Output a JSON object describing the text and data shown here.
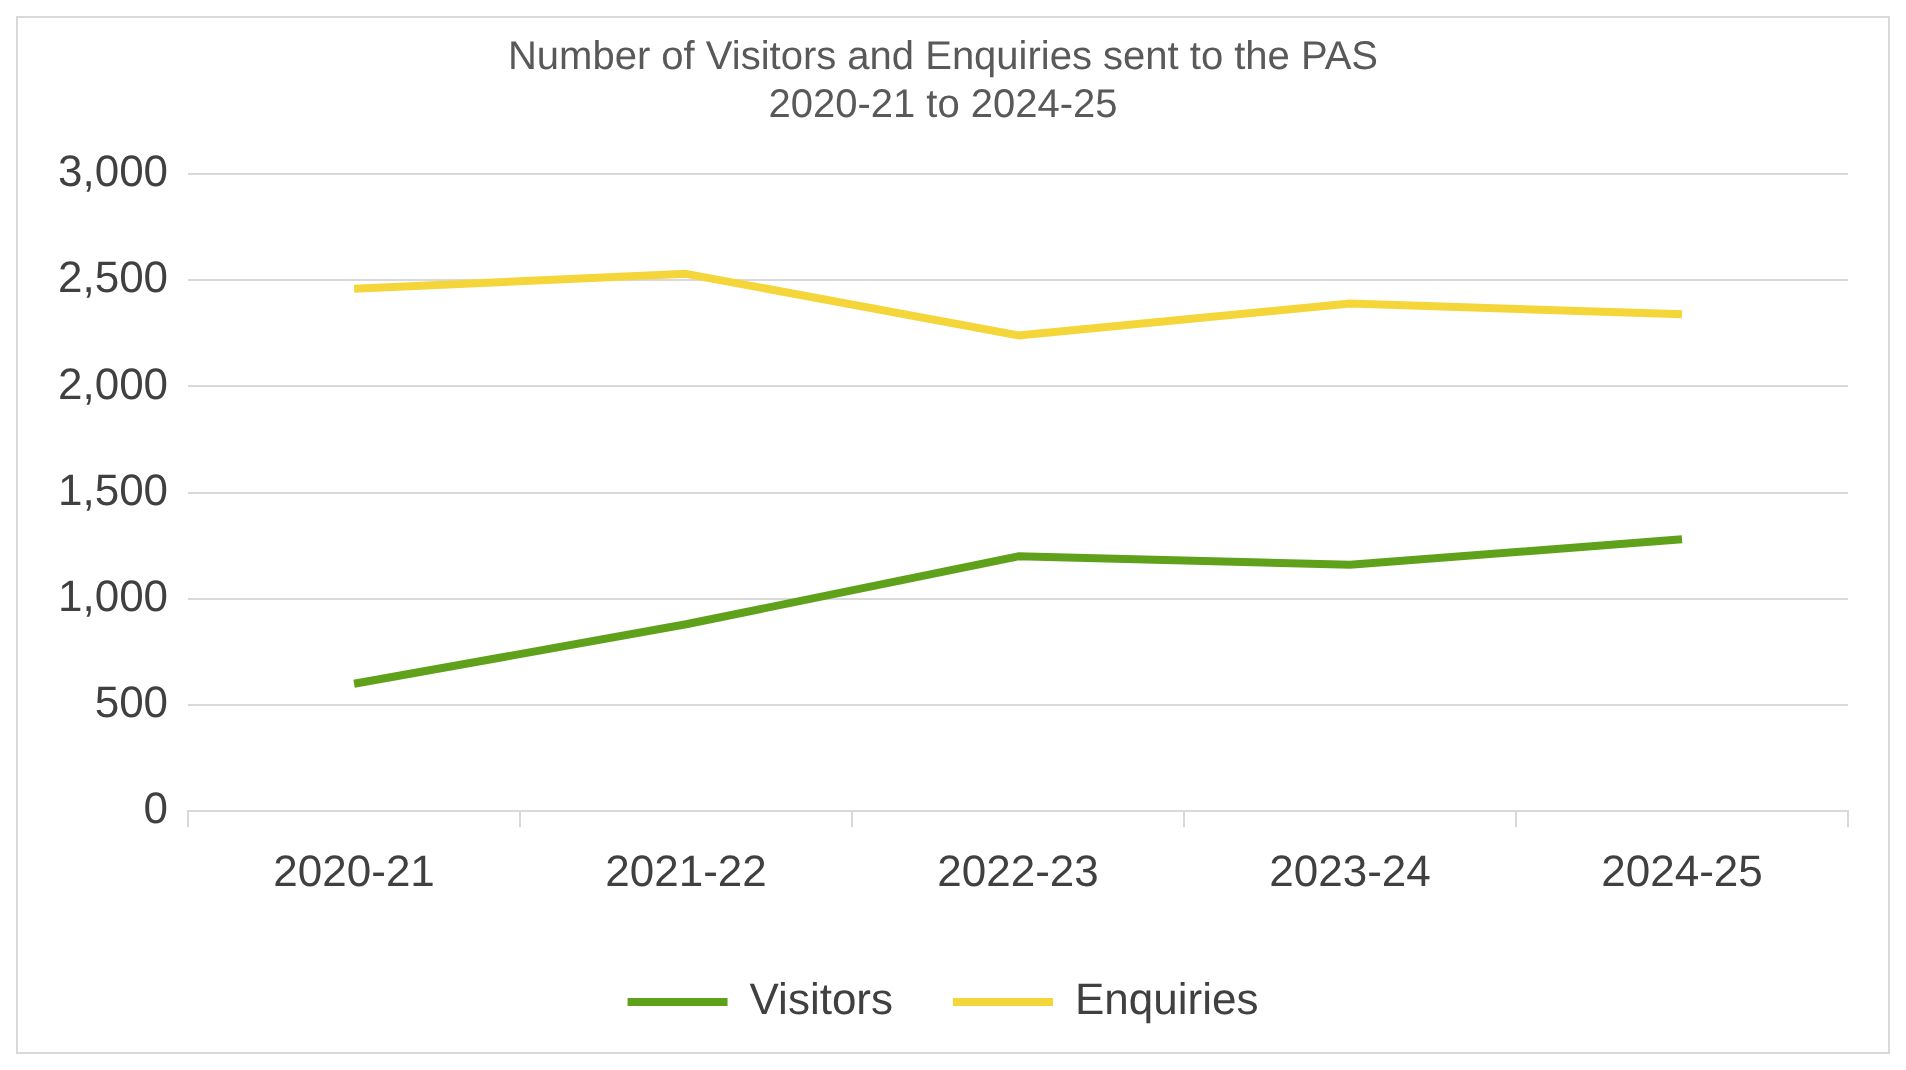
{
  "chart_data": {
    "type": "line",
    "title": "Number of Visitors and Enquiries sent to the PAS",
    "subtitle": "2020-21 to 2024-25",
    "categories": [
      "2020-21",
      "2021-22",
      "2022-23",
      "2023-24",
      "2024-25"
    ],
    "series": [
      {
        "name": "Visitors",
        "color": "#5fa11a",
        "values": [
          600,
          880,
          1200,
          1160,
          1280
        ]
      },
      {
        "name": "Enquiries",
        "color": "#f5d63a",
        "values": [
          2460,
          2530,
          2240,
          2390,
          2340
        ]
      }
    ],
    "ylim": [
      0,
      3000
    ],
    "yticks": [
      0,
      {
        "value": 500,
        "label": "500"
      },
      {
        "value": 1000,
        "label": "1,000"
      },
      {
        "value": 1500,
        "label": "1,500"
      },
      {
        "value": 2000,
        "label": "2,000"
      },
      {
        "value": 2500,
        "label": "2,500"
      },
      {
        "value": 3000,
        "label": "3,000"
      }
    ],
    "grid": "y",
    "legend": "bottom",
    "marker": "none",
    "line_style": "solid"
  }
}
